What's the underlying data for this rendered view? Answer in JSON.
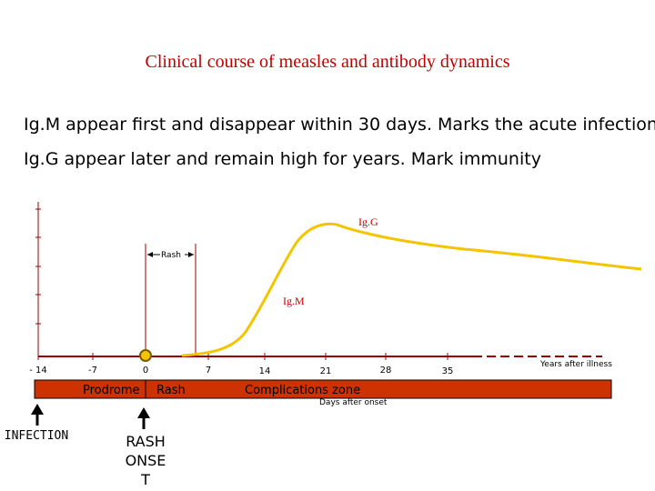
{
  "title": "Clinical course of measles and antibody dynamics",
  "text": {
    "line1": "Ig.M appear  first and disappear within 30 days. Marks the acute infection",
    "line2": "Ig.G appear later and remain high for years. Mark immunity"
  },
  "axis": {
    "ticks": [
      "- 14",
      "-7",
      "0",
      "7",
      "14",
      "21",
      "28",
      "35"
    ],
    "years_label": "Years after illness",
    "days_label": "Days after onset"
  },
  "curves": {
    "igg_label": "Ig.G",
    "igm_label": "Ig.M",
    "rash_label": "Rash"
  },
  "band": {
    "prodrome": "Prodrome",
    "rash": "Rash",
    "complications": "Complications zone"
  },
  "events": {
    "infection": "INFECTION",
    "rash_onset_lines": [
      "RASH",
      "ONSE",
      "T"
    ]
  },
  "colors": {
    "title": "#c00000",
    "curve": "#f2c500",
    "band": "#cc3300",
    "axis_red": "#990000",
    "marker_ring": "#7a5a00"
  }
}
